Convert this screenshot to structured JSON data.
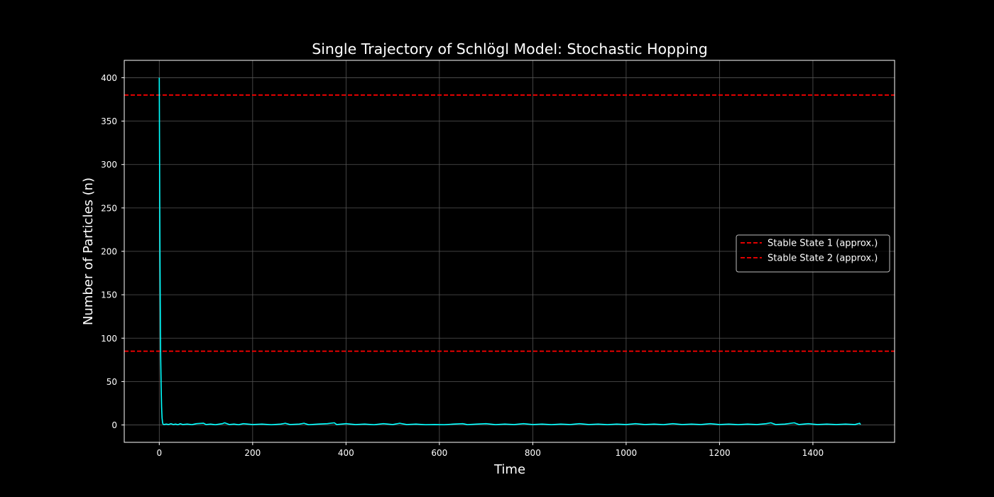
{
  "chart_data": {
    "type": "line",
    "title": "Single Trajectory of Schlögl Model: Stochastic Hopping",
    "xlabel": "Time",
    "ylabel": "Number of Particles (n)",
    "xlim": [
      -75,
      1575
    ],
    "ylim": [
      -20,
      420
    ],
    "x_ticks": [
      0,
      200,
      400,
      600,
      800,
      1000,
      1200,
      1400
    ],
    "y_ticks": [
      0,
      50,
      100,
      150,
      200,
      250,
      300,
      350,
      400
    ],
    "grid": true,
    "background_color": "#000000",
    "axes_color": "#ffffff",
    "grid_color": "#555555",
    "legend_position": "center-right",
    "series": [
      {
        "color": "#00ffff",
        "kind": "line",
        "points": [
          [
            0,
            400
          ],
          [
            0.5,
            330
          ],
          [
            1,
            260
          ],
          [
            1.5,
            200
          ],
          [
            2,
            150
          ],
          [
            2.5,
            110
          ],
          [
            3,
            80
          ],
          [
            4,
            45
          ],
          [
            5,
            20
          ],
          [
            6,
            8
          ],
          [
            7,
            3
          ],
          [
            8,
            1
          ],
          [
            10,
            0.5
          ],
          [
            15,
            1
          ],
          [
            20,
            0.5
          ],
          [
            25,
            1.5
          ],
          [
            30,
            0.5
          ],
          [
            35,
            1
          ],
          [
            40,
            0.3
          ],
          [
            45,
            1.5
          ],
          [
            50,
            0.5
          ],
          [
            60,
            1
          ],
          [
            70,
            0.4
          ],
          [
            80,
            1.5
          ],
          [
            95,
            2
          ],
          [
            100,
            0.5
          ],
          [
            110,
            1
          ],
          [
            120,
            0.3
          ],
          [
            135,
            1.5
          ],
          [
            140,
            2.5
          ],
          [
            150,
            0.5
          ],
          [
            160,
            1
          ],
          [
            170,
            0.3
          ],
          [
            180,
            1.5
          ],
          [
            200,
            0.5
          ],
          [
            220,
            1
          ],
          [
            240,
            0.3
          ],
          [
            260,
            1
          ],
          [
            270,
            2
          ],
          [
            280,
            0.5
          ],
          [
            300,
            1
          ],
          [
            310,
            2
          ],
          [
            320,
            0.3
          ],
          [
            340,
            1
          ],
          [
            360,
            1.5
          ],
          [
            375,
            2.5
          ],
          [
            380,
            0.5
          ],
          [
            400,
            1.5
          ],
          [
            420,
            0.5
          ],
          [
            440,
            1
          ],
          [
            460,
            0.3
          ],
          [
            480,
            1.5
          ],
          [
            500,
            0.5
          ],
          [
            515,
            2
          ],
          [
            530,
            0.5
          ],
          [
            550,
            1
          ],
          [
            570,
            0.3
          ],
          [
            590,
            0.5
          ],
          [
            610,
            0.3
          ],
          [
            630,
            1
          ],
          [
            650,
            1.5
          ],
          [
            660,
            0.4
          ],
          [
            680,
            1
          ],
          [
            700,
            1.5
          ],
          [
            720,
            0.4
          ],
          [
            740,
            1
          ],
          [
            760,
            0.5
          ],
          [
            780,
            1.5
          ],
          [
            800,
            0.5
          ],
          [
            820,
            1
          ],
          [
            840,
            0.4
          ],
          [
            860,
            1
          ],
          [
            880,
            0.5
          ],
          [
            900,
            1.5
          ],
          [
            920,
            0.5
          ],
          [
            940,
            1
          ],
          [
            960,
            0.4
          ],
          [
            980,
            1
          ],
          [
            1000,
            0.5
          ],
          [
            1020,
            1.5
          ],
          [
            1040,
            0.5
          ],
          [
            1060,
            1
          ],
          [
            1080,
            0.4
          ],
          [
            1100,
            1.5
          ],
          [
            1120,
            0.5
          ],
          [
            1140,
            1
          ],
          [
            1160,
            0.5
          ],
          [
            1180,
            1.5
          ],
          [
            1200,
            0.5
          ],
          [
            1220,
            1
          ],
          [
            1240,
            0.4
          ],
          [
            1260,
            1
          ],
          [
            1280,
            0.5
          ],
          [
            1300,
            1.5
          ],
          [
            1310,
            2.5
          ],
          [
            1320,
            0.5
          ],
          [
            1340,
            1
          ],
          [
            1360,
            2.5
          ],
          [
            1370,
            0.5
          ],
          [
            1390,
            1.5
          ],
          [
            1410,
            0.5
          ],
          [
            1430,
            1
          ],
          [
            1450,
            0.5
          ],
          [
            1470,
            1
          ],
          [
            1490,
            0.5
          ],
          [
            1500,
            2
          ],
          [
            1502,
            0.5
          ]
        ]
      },
      {
        "name": "Stable State 1 (approx.)",
        "color": "#ff0000",
        "kind": "hline",
        "y": 380
      },
      {
        "name": "Stable State 2 (approx.)",
        "color": "#ff0000",
        "kind": "hline",
        "y": 85
      }
    ]
  }
}
